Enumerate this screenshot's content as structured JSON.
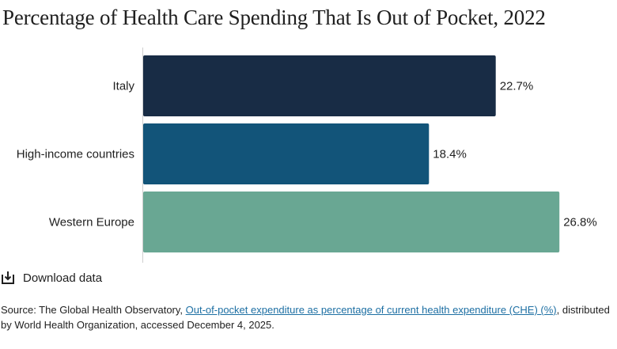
{
  "title": "Percentage of Health Care Spending That Is Out of Pocket, 2022",
  "chart_data": {
    "type": "bar",
    "orientation": "horizontal",
    "categories": [
      "Italy",
      "High-income countries",
      "Western Europe"
    ],
    "values": [
      22.7,
      18.4,
      26.8
    ],
    "value_labels": [
      "22.7%",
      "18.4%",
      "26.8%"
    ],
    "colors": [
      "#182c45",
      "#125479",
      "#69a793"
    ],
    "xlim": [
      0,
      30
    ],
    "grid": false,
    "title": "Percentage of Health Care Spending That Is Out of Pocket, 2022"
  },
  "download": {
    "label": "Download data",
    "icon": "download-icon"
  },
  "source": {
    "prefix": "Source: The Global Health Observatory, ",
    "link_text": "Out-of-pocket expenditure as percentage of current health expenditure (CHE) (%)",
    "suffix": ", distributed by World Health Organization, accessed December 4, 2025."
  }
}
